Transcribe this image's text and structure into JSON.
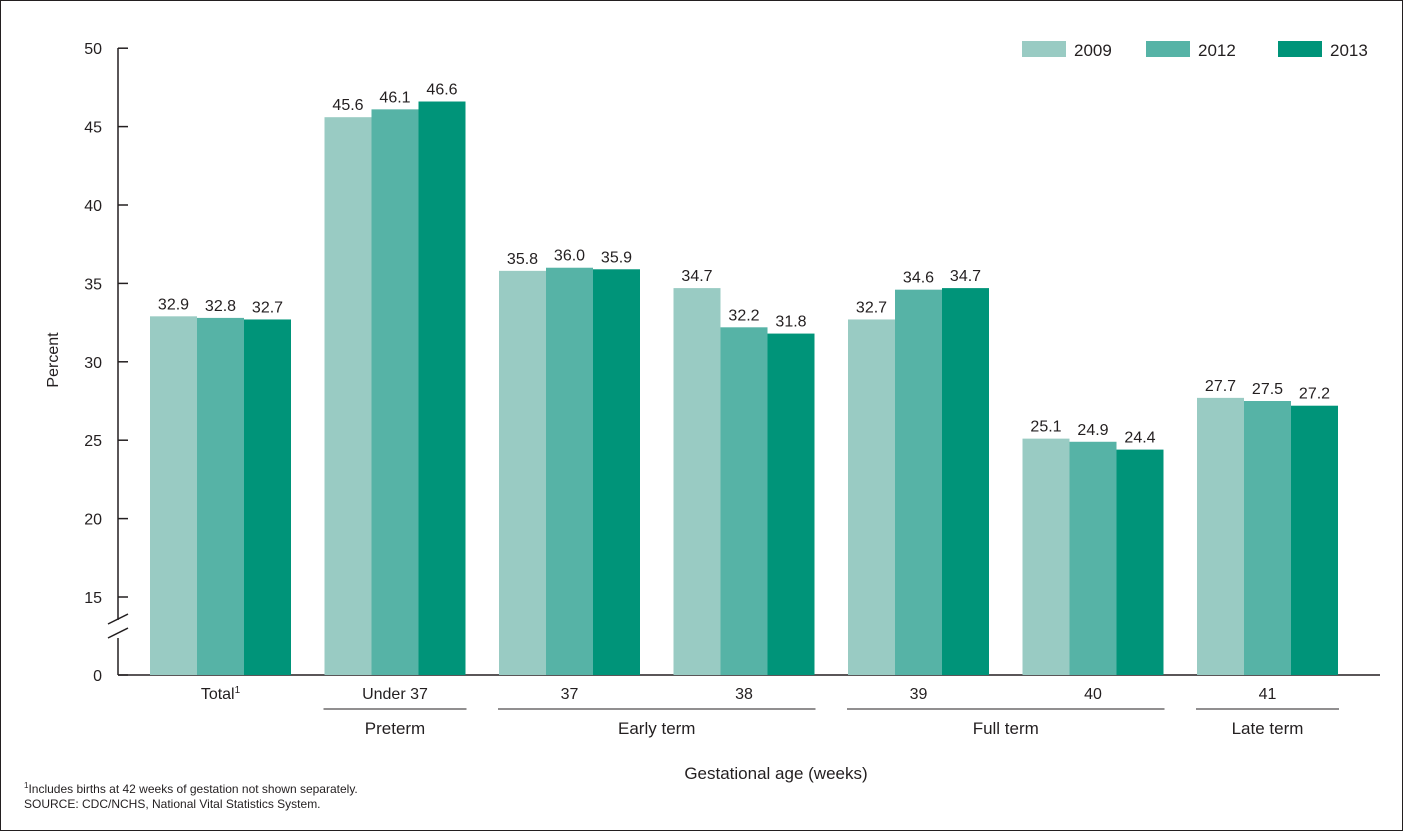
{
  "chart_data": {
    "type": "bar",
    "categories": [
      "Total",
      "Under 37",
      "37",
      "38",
      "39",
      "40",
      "41"
    ],
    "category_note_marks": [
      "1",
      "",
      "",
      "",
      "",
      "",
      ""
    ],
    "groups": [
      {
        "label": "Preterm",
        "categories": [
          "Under 37"
        ]
      },
      {
        "label": "Early term",
        "categories": [
          "37",
          "38"
        ]
      },
      {
        "label": "Full term",
        "categories": [
          "39",
          "40"
        ]
      },
      {
        "label": "Late term",
        "categories": [
          "41"
        ]
      }
    ],
    "series": [
      {
        "name": "2009",
        "color": "#99cbc3",
        "values": [
          32.9,
          45.6,
          35.8,
          34.7,
          32.7,
          25.1,
          27.7
        ]
      },
      {
        "name": "2012",
        "color": "#56b3a6",
        "values": [
          32.8,
          46.1,
          36.0,
          32.2,
          34.6,
          24.9,
          27.5
        ]
      },
      {
        "name": "2013",
        "color": "#009479",
        "values": [
          32.7,
          46.6,
          35.9,
          31.8,
          34.7,
          24.4,
          27.2
        ]
      }
    ],
    "value_labels": [
      [
        "32.9",
        "45.6",
        "35.8",
        "34.7",
        "32.7",
        "25.1",
        "27.7"
      ],
      [
        "32.8",
        "46.1",
        "36.0",
        "32.2",
        "34.6",
        "24.9",
        "27.5"
      ],
      [
        "32.7",
        "46.6",
        "35.9",
        "31.8",
        "34.7",
        "24.4",
        "27.2"
      ]
    ],
    "ylabel": "Percent",
    "xlabel": "Gestational age (weeks)",
    "yticks": [
      "0",
      "15",
      "20",
      "25",
      "30",
      "35",
      "40",
      "45",
      "50"
    ],
    "ylim": [
      0,
      50
    ],
    "axis_break": "between 0 and 15",
    "legend_position": "top-right",
    "grid": false
  },
  "footnotes": {
    "note_mark": "1",
    "note_text": "Includes births at 42 weeks of gestation not shown separately.",
    "source": "SOURCE: CDC/NCHS, National Vital Statistics System."
  }
}
